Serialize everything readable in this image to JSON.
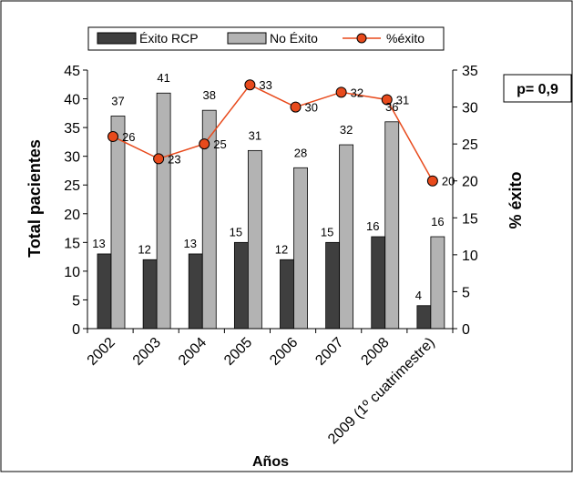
{
  "chart_data": {
    "type": "bar",
    "categories": [
      "2002",
      "2003",
      "2004",
      "2005",
      "2006",
      "2007",
      "2008",
      "2009 (1º cuatrimestre)"
    ],
    "series": [
      {
        "name": "Éxito RCP",
        "type": "bar",
        "axis": "left",
        "color": "#3f3f3f",
        "values": [
          13,
          12,
          13,
          15,
          12,
          15,
          16,
          4
        ]
      },
      {
        "name": "No Éxito",
        "type": "bar",
        "axis": "left",
        "color": "#b3b3b3",
        "values": [
          37,
          41,
          38,
          31,
          28,
          32,
          36,
          16
        ]
      },
      {
        "name": "%éxito",
        "type": "line",
        "axis": "right",
        "color": "#e84a1c",
        "marker_fill": "#e84a1c",
        "values": [
          26,
          23,
          25,
          33,
          30,
          32,
          31,
          20
        ]
      }
    ],
    "xlabel": "Años",
    "ylabel": "Total pacientes",
    "y2label": "% éxito",
    "ylim": [
      0,
      45
    ],
    "y_ticks": [
      0,
      5,
      10,
      15,
      20,
      25,
      30,
      35,
      40,
      45
    ],
    "y2lim": [
      0,
      35
    ],
    "y2_ticks": [
      0,
      5,
      10,
      15,
      20,
      25,
      30,
      35
    ],
    "grid": false,
    "legend_position": "top",
    "annotation": "p= 0,9"
  }
}
